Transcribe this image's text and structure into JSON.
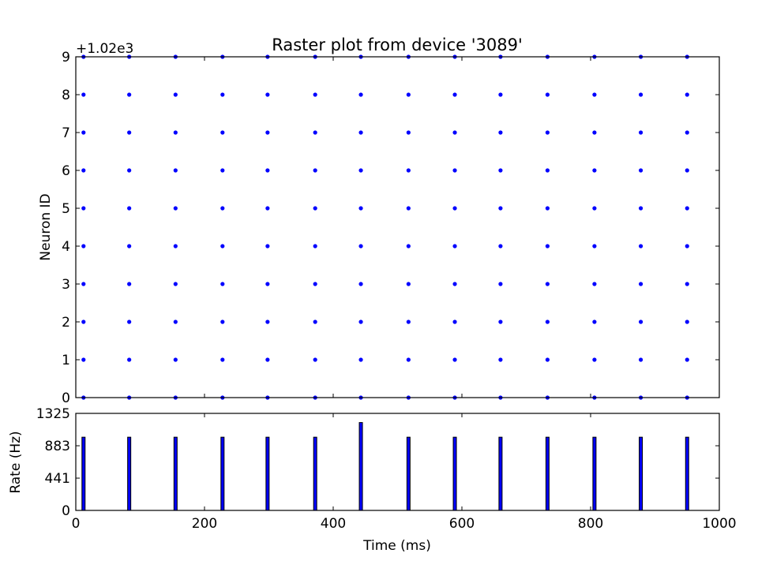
{
  "chart_data": [
    {
      "type": "scatter",
      "title": "Raster plot from device '3089'",
      "ylabel": "Neuron ID",
      "xlabel": "",
      "y_offset_text": "+1.02e3",
      "xlim": [
        0,
        1000
      ],
      "ylim": [
        0,
        9
      ],
      "yticks": [
        0,
        1,
        2,
        3,
        4,
        5,
        6,
        7,
        8,
        9
      ],
      "y_offset_value": 1020,
      "neurons": [
        1020,
        1021,
        1022,
        1023,
        1024,
        1025,
        1026,
        1027,
        1028,
        1029
      ],
      "spike_times_ms": [
        12,
        83,
        155,
        228,
        298,
        372,
        443,
        517,
        589,
        660,
        733,
        806,
        878,
        950
      ],
      "marker_color": "#0000ff",
      "grid": false
    },
    {
      "type": "bar",
      "xlabel": "Time (ms)",
      "ylabel": "Rate (Hz)",
      "xlim": [
        0,
        1000
      ],
      "xticks": [
        0,
        200,
        400,
        600,
        800,
        1000
      ],
      "ylim": [
        0,
        1325
      ],
      "yticks": [
        0,
        441,
        883,
        1325
      ],
      "bins_ms": [
        12,
        83,
        155,
        228,
        298,
        372,
        443,
        517,
        589,
        660,
        733,
        806,
        878,
        950
      ],
      "rates_hz": [
        1000,
        1000,
        1000,
        1000,
        1000,
        1000,
        1200,
        1000,
        1000,
        1000,
        1000,
        1000,
        1000,
        1000
      ],
      "bar_color": "#0000ff",
      "grid": false
    }
  ]
}
